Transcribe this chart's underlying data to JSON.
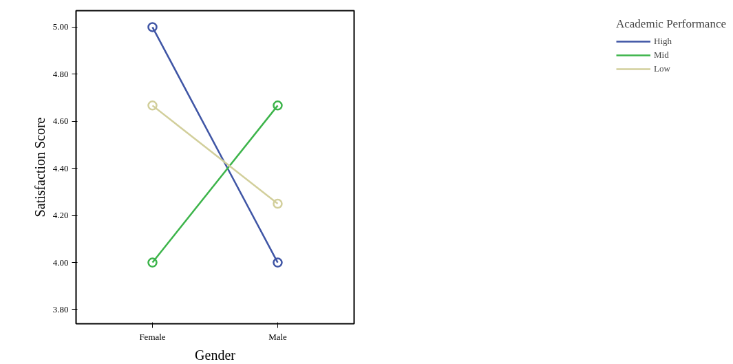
{
  "chart_data": {
    "type": "line",
    "xlabel": "Gender",
    "ylabel": "Satisfaction Score",
    "legend_title": "Academic Performance",
    "categories": [
      "Female",
      "Male"
    ],
    "series": [
      {
        "name": "High",
        "color": "#3f55a5",
        "values": [
          5.0,
          4.0
        ]
      },
      {
        "name": "Mid",
        "color": "#3cb44a",
        "values": [
          4.0,
          4.667
        ]
      },
      {
        "name": "Low",
        "color": "#d2cf9b",
        "values": [
          4.667,
          4.25
        ]
      }
    ],
    "ylim": [
      3.74,
      5.07
    ],
    "yticks": [
      {
        "value": 3.8,
        "label": "3.80"
      },
      {
        "value": 4.0,
        "label": "4.00"
      },
      {
        "value": 4.2,
        "label": "4.20"
      },
      {
        "value": 4.4,
        "label": "4.40"
      },
      {
        "value": 4.6,
        "label": "4.60"
      },
      {
        "value": 4.8,
        "label": "4.80"
      },
      {
        "value": 5.0,
        "label": "5.00"
      }
    ],
    "marker": "circle",
    "line_style": "solid",
    "legend": "top right",
    "grid": false
  }
}
